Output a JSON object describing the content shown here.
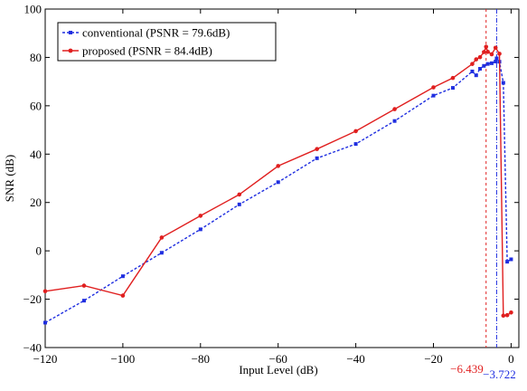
{
  "chart_data": {
    "type": "line",
    "title": "",
    "xlabel": "Input Level (dB)",
    "ylabel": "SNR (dB)",
    "xlim": [
      -120,
      2
    ],
    "ylim": [
      -40,
      100
    ],
    "grid": false,
    "legend_position": "top-left",
    "x_ticks": [
      -120,
      -100,
      -80,
      -60,
      -40,
      -20,
      0
    ],
    "x_tick_labels": [
      "−120",
      "−100",
      "−80",
      "−60",
      "−40",
      "−20",
      "0"
    ],
    "y_ticks": [
      -40,
      -20,
      0,
      20,
      40,
      60,
      80,
      100
    ],
    "y_tick_labels": [
      "−40",
      "−20",
      "0",
      "20",
      "40",
      "60",
      "80",
      "100"
    ],
    "series": [
      {
        "name": "conventional (PSNR = 79.6dB)",
        "color": "#1f2ee0",
        "line_style": "dashed",
        "marker": "square",
        "x": [
          -120,
          -110,
          -100,
          -90,
          -80,
          -70,
          -60,
          -50,
          -40,
          -30,
          -20,
          -15,
          -10,
          -9,
          -8,
          -7,
          -6,
          -5,
          -4,
          -3.722,
          -3,
          -2,
          -1,
          0
        ],
        "y": [
          -29.7,
          -20.6,
          -10.5,
          -0.8,
          8.9,
          19.2,
          28.4,
          38.3,
          44.2,
          53.7,
          64.2,
          67.4,
          74.2,
          72.6,
          75.3,
          76.5,
          77.3,
          77.6,
          78.3,
          79.6,
          78.2,
          69.5,
          -4.5,
          -3.5
        ]
      },
      {
        "name": "proposed (PSNR = 84.4dB)",
        "color": "#e01f1f",
        "line_style": "solid",
        "marker": "circle",
        "x": [
          -120,
          -110,
          -100,
          -90,
          -80,
          -70,
          -60,
          -50,
          -40,
          -30,
          -20,
          -15,
          -10,
          -9,
          -8,
          -7,
          -6.439,
          -6,
          -5,
          -4,
          -3,
          -2,
          -1,
          0
        ],
        "y": [
          -16.7,
          -14.4,
          -18.5,
          5.5,
          14.5,
          23.3,
          35.1,
          42.1,
          49.5,
          58.6,
          67.6,
          71.5,
          77.3,
          79.2,
          80.1,
          82.2,
          84.4,
          82.3,
          81.3,
          84.0,
          81.5,
          -26.8,
          -26.6,
          -25.5
        ]
      }
    ],
    "annotations": [
      {
        "type": "vline",
        "x": -6.439,
        "label": "−6.439",
        "color": "#e01f1f",
        "line_style": "dashed"
      },
      {
        "type": "vline",
        "x": -3.722,
        "label": "−3.722",
        "color": "#1f2ee0",
        "line_style": "dashdot"
      }
    ]
  }
}
